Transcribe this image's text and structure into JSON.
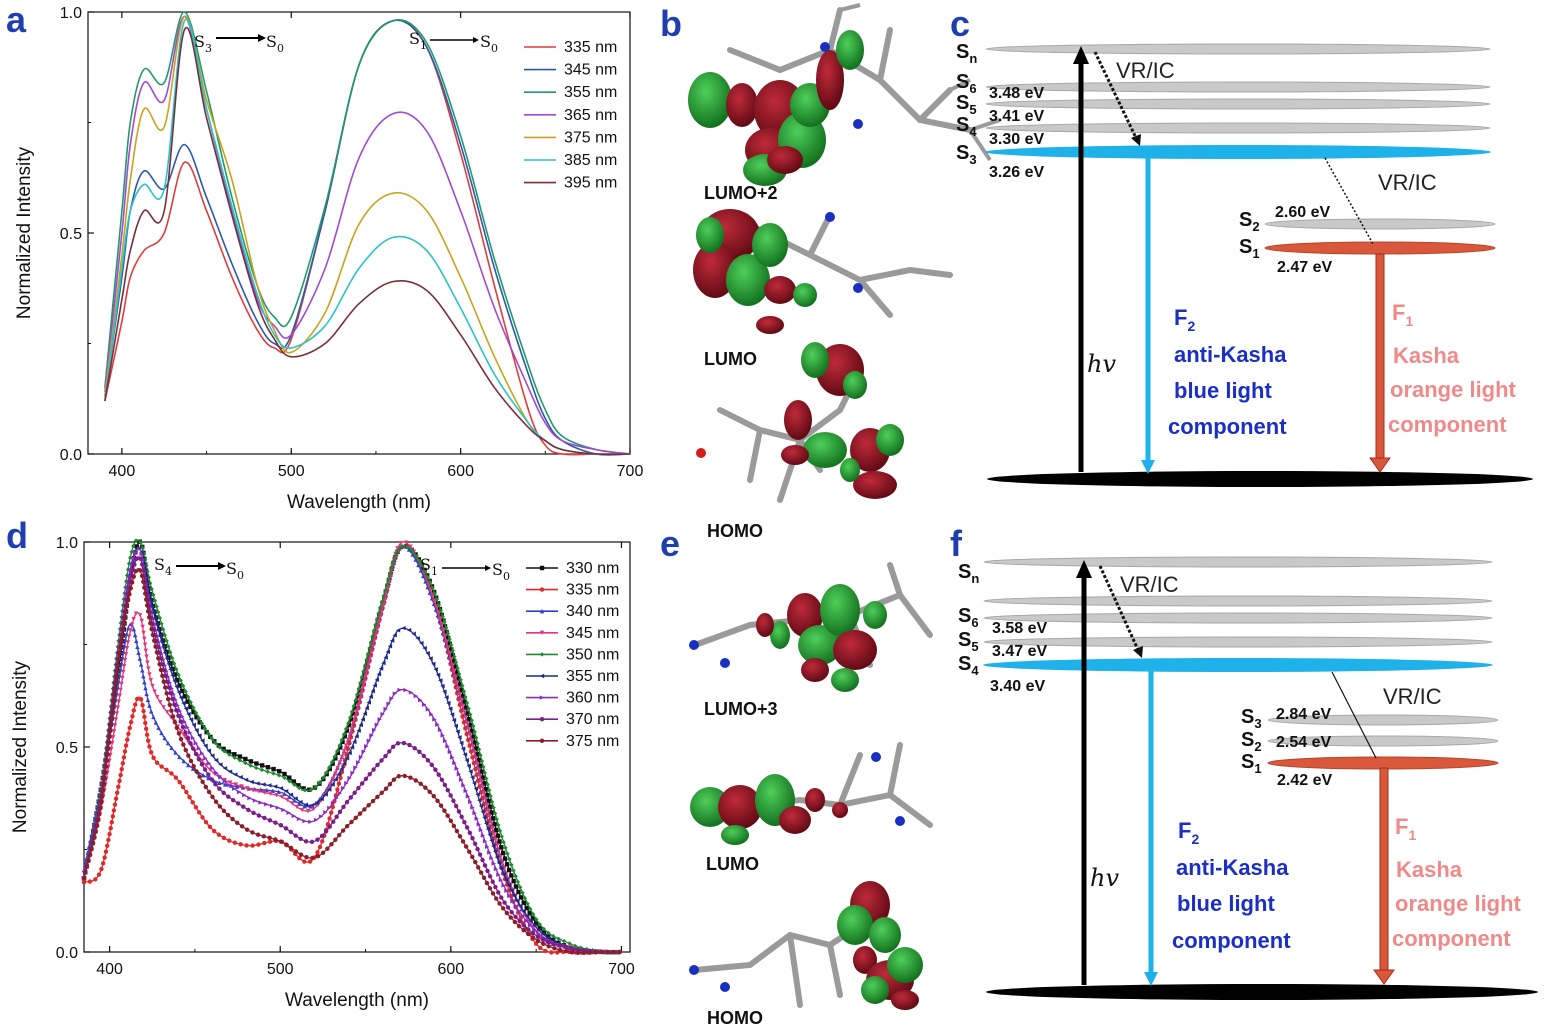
{
  "panels": {
    "a": {
      "label": "a"
    },
    "b": {
      "label": "b"
    },
    "c": {
      "label": "c"
    },
    "d": {
      "label": "d"
    },
    "e": {
      "label": "e"
    },
    "f": {
      "label": "f"
    }
  },
  "chart_a": {
    "transition_left": {
      "from": "S",
      "from_sub": "3",
      "to": "S",
      "to_sub": "0"
    },
    "transition_right": {
      "from": "S",
      "from_sub": "1",
      "to": "S",
      "to_sub": "0"
    }
  },
  "chart_d": {
    "transition_left": {
      "from": "S",
      "from_sub": "4",
      "to": "S",
      "to_sub": "0"
    },
    "transition_right": {
      "from": "S",
      "from_sub": "1",
      "to": "S",
      "to_sub": "0"
    }
  },
  "chart_data": [
    {
      "panel": "a",
      "type": "line",
      "xlabel": "Wavelength (nm)",
      "ylabel": "Normalized Intensity",
      "xlim": [
        380,
        700
      ],
      "ylim": [
        0.0,
        1.0
      ],
      "xticks": [
        "400",
        "500",
        "600",
        "700"
      ],
      "yticks": [
        "0.0",
        "0.5",
        "1.0"
      ],
      "legend_position": "top-right",
      "x": [
        390,
        400,
        405,
        413,
        425,
        437,
        450,
        465,
        480,
        490,
        500,
        520,
        540,
        560,
        580,
        600,
        620,
        640,
        650,
        660,
        680,
        700
      ],
      "series": [
        {
          "name": "335 nm",
          "color": "#e03c3c",
          "values": [
            0.12,
            0.3,
            0.4,
            0.46,
            0.5,
            0.66,
            0.55,
            0.4,
            0.28,
            0.24,
            0.26,
            0.55,
            0.88,
            0.98,
            0.92,
            0.68,
            0.38,
            0.1,
            0.02,
            0.0,
            0.0,
            0.0
          ]
        },
        {
          "name": "345 nm",
          "color": "#2c5aa8",
          "values": [
            0.13,
            0.4,
            0.55,
            0.64,
            0.6,
            0.7,
            0.58,
            0.43,
            0.3,
            0.25,
            0.27,
            0.55,
            0.88,
            0.98,
            0.92,
            0.7,
            0.42,
            0.18,
            0.08,
            0.03,
            0.0,
            0.0
          ]
        },
        {
          "name": "355 nm",
          "color": "#1f9b6b",
          "values": [
            0.15,
            0.55,
            0.75,
            0.87,
            0.84,
            1.0,
            0.82,
            0.58,
            0.38,
            0.31,
            0.31,
            0.56,
            0.88,
            0.98,
            0.93,
            0.72,
            0.44,
            0.2,
            0.1,
            0.04,
            0.01,
            0.0
          ]
        },
        {
          "name": "365 nm",
          "color": "#a24ad0",
          "values": [
            0.14,
            0.5,
            0.7,
            0.84,
            0.8,
            0.99,
            0.78,
            0.55,
            0.35,
            0.29,
            0.27,
            0.42,
            0.67,
            0.77,
            0.73,
            0.55,
            0.33,
            0.15,
            0.07,
            0.03,
            0.01,
            0.0
          ]
        },
        {
          "name": "375 nm",
          "color": "#caa21c",
          "values": [
            0.13,
            0.45,
            0.62,
            0.78,
            0.74,
            0.99,
            0.8,
            0.62,
            0.38,
            0.28,
            0.23,
            0.32,
            0.52,
            0.59,
            0.55,
            0.4,
            0.22,
            0.07,
            0.03,
            0.01,
            0.0,
            0.0
          ]
        },
        {
          "name": "385 nm",
          "color": "#29c4c9",
          "values": [
            0.12,
            0.42,
            0.55,
            0.61,
            0.6,
            0.98,
            0.78,
            0.56,
            0.36,
            0.27,
            0.24,
            0.29,
            0.42,
            0.49,
            0.46,
            0.33,
            0.18,
            0.07,
            0.03,
            0.01,
            0.0,
            0.0
          ]
        },
        {
          "name": "395 nm",
          "color": "#7a2e3a",
          "values": [
            0.12,
            0.35,
            0.46,
            0.55,
            0.55,
            0.96,
            0.76,
            0.54,
            0.34,
            0.26,
            0.22,
            0.25,
            0.34,
            0.39,
            0.37,
            0.27,
            0.15,
            0.06,
            0.03,
            0.01,
            0.0,
            0.0
          ]
        }
      ]
    },
    {
      "panel": "d",
      "type": "line",
      "xlabel": "Wavelength (nm)",
      "ylabel": "Normalized Intensity",
      "xlim": [
        385,
        705
      ],
      "ylim": [
        0.0,
        1.0
      ],
      "xticks": [
        "400",
        "500",
        "600",
        "700"
      ],
      "yticks": [
        "0.0",
        "0.5",
        "1.0"
      ],
      "legend_position": "top-right",
      "x": [
        385,
        395,
        405,
        412,
        418,
        425,
        440,
        460,
        480,
        500,
        520,
        540,
        560,
        572,
        590,
        610,
        630,
        650,
        670,
        690,
        700
      ],
      "series": [
        {
          "name": "330 nm",
          "color": "#111111",
          "marker": "square",
          "values": [
            0.18,
            0.4,
            0.68,
            0.9,
            1.0,
            0.85,
            0.66,
            0.52,
            0.47,
            0.44,
            0.4,
            0.55,
            0.85,
            0.99,
            0.88,
            0.58,
            0.25,
            0.07,
            0.01,
            0.0,
            0.0
          ]
        },
        {
          "name": "335 nm",
          "color": "#e02a2a",
          "marker": "circle",
          "values": [
            0.17,
            0.2,
            0.4,
            0.55,
            0.62,
            0.48,
            0.42,
            0.3,
            0.26,
            0.27,
            0.23,
            0.5,
            0.84,
            0.99,
            0.86,
            0.52,
            0.2,
            0.02,
            0.0,
            0.0,
            0.0
          ]
        },
        {
          "name": "340 nm",
          "color": "#2f3fcf",
          "marker": "triangle",
          "values": [
            0.2,
            0.4,
            0.65,
            0.8,
            0.71,
            0.58,
            0.48,
            0.42,
            0.4,
            0.39,
            0.36,
            0.52,
            0.84,
            0.99,
            0.85,
            0.55,
            0.22,
            0.05,
            0.01,
            0.0,
            0.0
          ]
        },
        {
          "name": "345 nm",
          "color": "#e0367a",
          "marker": "triangle-down",
          "values": [
            0.18,
            0.35,
            0.6,
            0.78,
            0.82,
            0.65,
            0.55,
            0.44,
            0.4,
            0.38,
            0.35,
            0.52,
            0.84,
            1.0,
            0.86,
            0.55,
            0.22,
            0.05,
            0.01,
            0.0,
            0.0
          ]
        },
        {
          "name": "350 nm",
          "color": "#1e8a2e",
          "marker": "diamond",
          "values": [
            0.18,
            0.4,
            0.75,
            0.96,
            1.0,
            0.88,
            0.68,
            0.52,
            0.46,
            0.43,
            0.4,
            0.56,
            0.86,
            0.99,
            0.88,
            0.6,
            0.28,
            0.08,
            0.02,
            0.0,
            0.0
          ]
        },
        {
          "name": "355 nm",
          "color": "#1d2a8a",
          "marker": "triangle-left",
          "values": [
            0.18,
            0.38,
            0.72,
            0.93,
            0.98,
            0.84,
            0.64,
            0.48,
            0.42,
            0.4,
            0.36,
            0.48,
            0.7,
            0.79,
            0.7,
            0.46,
            0.2,
            0.06,
            0.01,
            0.0,
            0.0
          ]
        },
        {
          "name": "360 nm",
          "color": "#8a2bc4",
          "marker": "triangle-right",
          "values": [
            0.18,
            0.38,
            0.72,
            0.92,
            0.98,
            0.82,
            0.6,
            0.45,
            0.38,
            0.35,
            0.32,
            0.42,
            0.58,
            0.64,
            0.57,
            0.38,
            0.17,
            0.05,
            0.01,
            0.0,
            0.0
          ]
        },
        {
          "name": "370 nm",
          "color": "#7a1e8a",
          "marker": "hexagon",
          "values": [
            0.18,
            0.38,
            0.72,
            0.9,
            0.96,
            0.8,
            0.58,
            0.42,
            0.35,
            0.31,
            0.27,
            0.37,
            0.47,
            0.51,
            0.45,
            0.3,
            0.13,
            0.04,
            0.01,
            0.0,
            0.0
          ]
        },
        {
          "name": "375 nm",
          "color": "#8a1e2a",
          "marker": "star",
          "values": [
            0.18,
            0.36,
            0.7,
            0.88,
            0.93,
            0.78,
            0.54,
            0.38,
            0.3,
            0.27,
            0.23,
            0.31,
            0.39,
            0.43,
            0.38,
            0.25,
            0.11,
            0.03,
            0.0,
            0.0,
            0.0
          ]
        }
      ]
    }
  ],
  "orbitals_b": [
    "LUMO+2",
    "LUMO",
    "HOMO"
  ],
  "orbitals_e": [
    "LUMO+3",
    "LUMO",
    "HOMO"
  ],
  "diagram_c": {
    "levels": [
      {
        "state": "S",
        "sub": "n",
        "energy": ""
      },
      {
        "state": "S",
        "sub": "6",
        "energy": "3.48 eV"
      },
      {
        "state": "S",
        "sub": "5",
        "energy": "3.41 eV"
      },
      {
        "state": "S",
        "sub": "4",
        "energy": "3.30 eV"
      },
      {
        "state": "S",
        "sub": "3",
        "energy": "3.26 eV"
      },
      {
        "state": "S",
        "sub": "2",
        "energy": "2.60 eV"
      },
      {
        "state": "S",
        "sub": "1",
        "energy": "2.47 eV"
      }
    ],
    "vric_top": "VR/IC",
    "vric_mid": "VR/IC",
    "hv": "hv",
    "f2": {
      "label": "F",
      "sub": "2",
      "lines": [
        "anti-Kasha",
        "blue light",
        "component"
      ]
    },
    "f1": {
      "label": "F",
      "sub": "1",
      "lines": [
        "Kasha",
        "orange light",
        "component"
      ]
    }
  },
  "diagram_f": {
    "levels": [
      {
        "state": "S",
        "sub": "n",
        "energy": ""
      },
      {
        "state": "S",
        "sub": "6",
        "energy": "3.58 eV"
      },
      {
        "state": "S",
        "sub": "5",
        "energy": "3.47 eV"
      },
      {
        "state": "S",
        "sub": "4",
        "energy": "3.40 eV"
      },
      {
        "state": "S",
        "sub": "3",
        "energy": "2.84 eV"
      },
      {
        "state": "S",
        "sub": "2",
        "energy": "2.54 eV"
      },
      {
        "state": "S",
        "sub": "1",
        "energy": "2.42 eV"
      }
    ],
    "vric_top": "VR/IC",
    "vric_mid": "VR/IC",
    "hv": "hv",
    "f2": {
      "label": "F",
      "sub": "2",
      "lines": [
        "anti-Kasha",
        "blue light",
        "component"
      ]
    },
    "f1": {
      "label": "F",
      "sub": "1",
      "lines": [
        "Kasha",
        "orange light",
        "component"
      ]
    }
  },
  "colors": {
    "panel_label": "#1f3fb0",
    "blue_level": "#1fb2ea",
    "orange_level": "#d9583b",
    "gray_level": "#c9c9c9",
    "ground": "#000000",
    "f2_text": "#1c2fc4",
    "f1_text": "#ef8a8a",
    "orbital_green": "#1d8a2a",
    "orbital_red": "#8a1020"
  }
}
